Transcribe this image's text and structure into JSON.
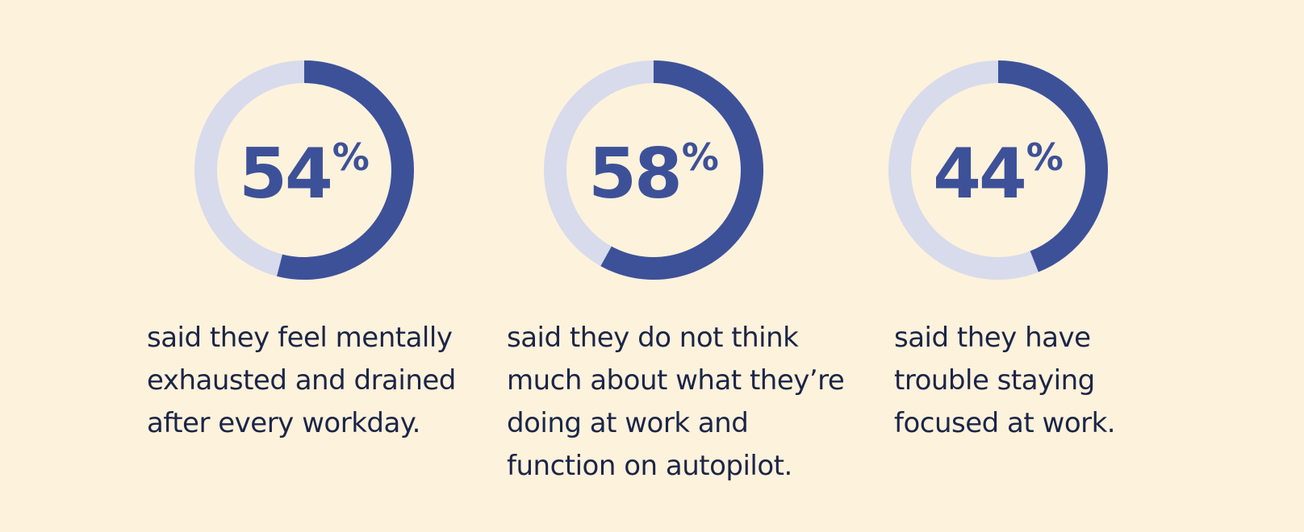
{
  "colors": {
    "background": "#fdf2dc",
    "ring_track": "#d7dbeb",
    "ring_fill": "#3d5199",
    "text": "#1c2547"
  },
  "chart_data": [
    {
      "type": "pie",
      "value": 54,
      "values": [
        54,
        46
      ],
      "percent_label": "54",
      "percent_symbol": "%",
      "caption_lines": [
        "said they feel mentally",
        "exhausted and drained",
        "after every workday."
      ]
    },
    {
      "type": "pie",
      "value": 58,
      "values": [
        58,
        42
      ],
      "percent_label": "58",
      "percent_symbol": "%",
      "caption_lines": [
        "said they do not think",
        "much about what they’re",
        "doing at work and",
        "function on autopilot."
      ]
    },
    {
      "type": "pie",
      "value": 44,
      "values": [
        44,
        56
      ],
      "percent_label": "44",
      "percent_symbol": "%",
      "caption_lines": [
        "said they have",
        "trouble staying",
        "focused at work."
      ]
    }
  ]
}
